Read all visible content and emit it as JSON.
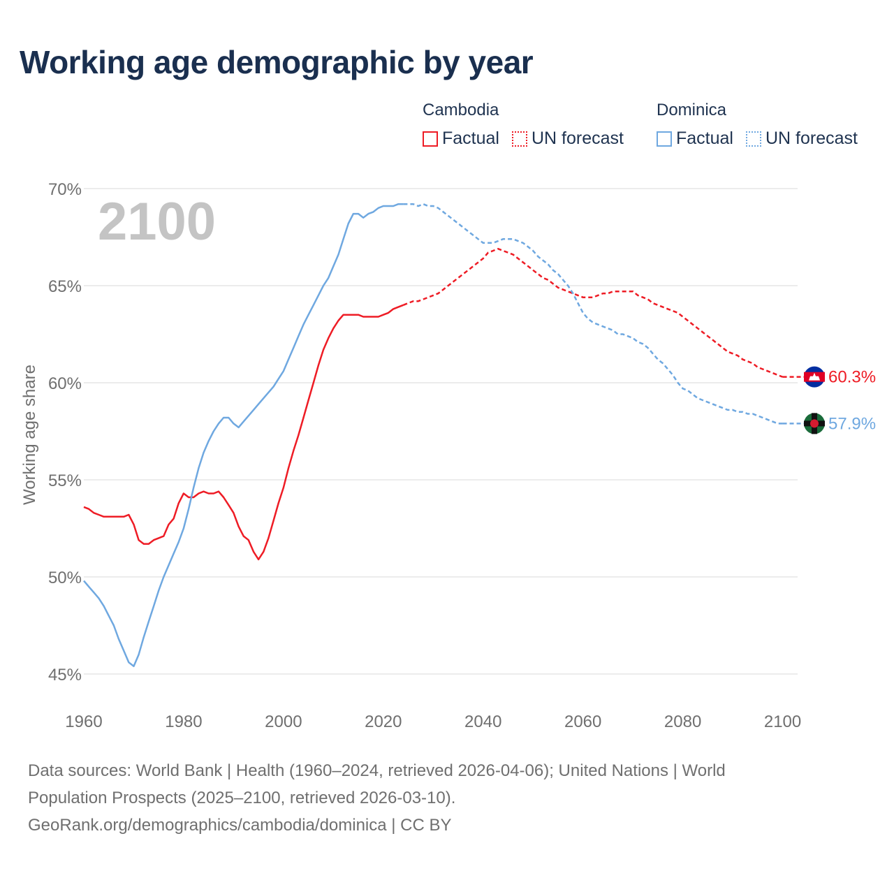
{
  "title": "Working age demographic by year",
  "colors": {
    "cambodia": "#ee1c25",
    "dominica": "#6fa8e0",
    "grid": "#e6e6e6",
    "tick": "#6f6f6f",
    "year_watermark": "#c4c4c4"
  },
  "legend": {
    "groups": [
      {
        "name": "Cambodia",
        "factual": "Factual",
        "forecast": "UN forecast",
        "color": "#ee1c25"
      },
      {
        "name": "Dominica",
        "factual": "Factual",
        "forecast": "UN forecast",
        "color": "#6fa8e0"
      }
    ]
  },
  "footer": {
    "sources_line1": "Data sources: World Bank | Health (1960–2024, retrieved 2026-04-06); United Nations | World",
    "sources_line2": "Population Prospects (2025–2100, retrieved 2026-03-10).",
    "credit": "GeoRank.org/demographics/cambodia/dominica | CC BY"
  },
  "chart_data": {
    "type": "line",
    "title": "Working age demographic by year",
    "xlabel": "",
    "ylabel": "Working age share",
    "year_watermark": "2100",
    "xlim": [
      1960,
      2103
    ],
    "ylim": [
      45,
      70
    ],
    "x_ticks": [
      1960,
      1980,
      2000,
      2020,
      2040,
      2060,
      2080,
      2100
    ],
    "x_tick_labels": [
      "1960",
      "1980",
      "2000",
      "2020",
      "2040",
      "2060",
      "2080",
      "2100"
    ],
    "y_ticks": [
      45,
      50,
      55,
      60,
      65,
      70
    ],
    "y_tick_labels": [
      "45%",
      "50%",
      "55%",
      "60%",
      "65%",
      "70%"
    ],
    "grid": true,
    "forecast_start": 2024,
    "series": [
      {
        "name": "Cambodia",
        "color": "#ee1c25",
        "end_label": "60.3%",
        "points": [
          [
            1960,
            53.6
          ],
          [
            1961,
            53.5
          ],
          [
            1962,
            53.3
          ],
          [
            1963,
            53.2
          ],
          [
            1964,
            53.1
          ],
          [
            1965,
            53.1
          ],
          [
            1966,
            53.1
          ],
          [
            1967,
            53.1
          ],
          [
            1968,
            53.1
          ],
          [
            1969,
            53.2
          ],
          [
            1970,
            52.7
          ],
          [
            1971,
            51.9
          ],
          [
            1972,
            51.7
          ],
          [
            1973,
            51.7
          ],
          [
            1974,
            51.9
          ],
          [
            1975,
            52.0
          ],
          [
            1976,
            52.1
          ],
          [
            1977,
            52.7
          ],
          [
            1978,
            53.0
          ],
          [
            1979,
            53.8
          ],
          [
            1980,
            54.3
          ],
          [
            1981,
            54.1
          ],
          [
            1982,
            54.1
          ],
          [
            1983,
            54.3
          ],
          [
            1984,
            54.4
          ],
          [
            1985,
            54.3
          ],
          [
            1986,
            54.3
          ],
          [
            1987,
            54.4
          ],
          [
            1988,
            54.1
          ],
          [
            1989,
            53.7
          ],
          [
            1990,
            53.3
          ],
          [
            1991,
            52.6
          ],
          [
            1992,
            52.1
          ],
          [
            1993,
            51.9
          ],
          [
            1994,
            51.3
          ],
          [
            1995,
            50.9
          ],
          [
            1996,
            51.3
          ],
          [
            1997,
            52.0
          ],
          [
            1998,
            52.9
          ],
          [
            1999,
            53.8
          ],
          [
            2000,
            54.6
          ],
          [
            2001,
            55.6
          ],
          [
            2002,
            56.5
          ],
          [
            2003,
            57.3
          ],
          [
            2004,
            58.2
          ],
          [
            2005,
            59.1
          ],
          [
            2006,
            60.0
          ],
          [
            2007,
            60.9
          ],
          [
            2008,
            61.7
          ],
          [
            2009,
            62.3
          ],
          [
            2010,
            62.8
          ],
          [
            2011,
            63.2
          ],
          [
            2012,
            63.5
          ],
          [
            2013,
            63.5
          ],
          [
            2014,
            63.5
          ],
          [
            2015,
            63.5
          ],
          [
            2016,
            63.4
          ],
          [
            2017,
            63.4
          ],
          [
            2018,
            63.4
          ],
          [
            2019,
            63.4
          ],
          [
            2020,
            63.5
          ],
          [
            2021,
            63.6
          ],
          [
            2022,
            63.8
          ],
          [
            2023,
            63.9
          ],
          [
            2024,
            64.0
          ],
          [
            2025,
            64.1
          ],
          [
            2026,
            64.2
          ],
          [
            2027,
            64.2
          ],
          [
            2028,
            64.3
          ],
          [
            2029,
            64.4
          ],
          [
            2030,
            64.5
          ],
          [
            2031,
            64.6
          ],
          [
            2032,
            64.8
          ],
          [
            2033,
            65.0
          ],
          [
            2034,
            65.2
          ],
          [
            2035,
            65.4
          ],
          [
            2036,
            65.6
          ],
          [
            2037,
            65.8
          ],
          [
            2038,
            66.0
          ],
          [
            2039,
            66.2
          ],
          [
            2040,
            66.4
          ],
          [
            2041,
            66.7
          ],
          [
            2042,
            66.8
          ],
          [
            2043,
            66.9
          ],
          [
            2044,
            66.8
          ],
          [
            2045,
            66.7
          ],
          [
            2046,
            66.6
          ],
          [
            2047,
            66.4
          ],
          [
            2048,
            66.2
          ],
          [
            2049,
            66.0
          ],
          [
            2050,
            65.8
          ],
          [
            2051,
            65.6
          ],
          [
            2052,
            65.4
          ],
          [
            2053,
            65.3
          ],
          [
            2054,
            65.1
          ],
          [
            2055,
            64.9
          ],
          [
            2056,
            64.8
          ],
          [
            2057,
            64.7
          ],
          [
            2058,
            64.6
          ],
          [
            2059,
            64.5
          ],
          [
            2060,
            64.4
          ],
          [
            2061,
            64.4
          ],
          [
            2062,
            64.4
          ],
          [
            2063,
            64.5
          ],
          [
            2064,
            64.6
          ],
          [
            2065,
            64.6
          ],
          [
            2066,
            64.7
          ],
          [
            2067,
            64.7
          ],
          [
            2068,
            64.7
          ],
          [
            2069,
            64.7
          ],
          [
            2070,
            64.7
          ],
          [
            2071,
            64.5
          ],
          [
            2072,
            64.4
          ],
          [
            2073,
            64.3
          ],
          [
            2074,
            64.1
          ],
          [
            2075,
            64.0
          ],
          [
            2076,
            63.9
          ],
          [
            2077,
            63.8
          ],
          [
            2078,
            63.7
          ],
          [
            2079,
            63.6
          ],
          [
            2080,
            63.4
          ],
          [
            2081,
            63.2
          ],
          [
            2082,
            63.0
          ],
          [
            2083,
            62.8
          ],
          [
            2084,
            62.6
          ],
          [
            2085,
            62.4
          ],
          [
            2086,
            62.2
          ],
          [
            2087,
            62.0
          ],
          [
            2088,
            61.8
          ],
          [
            2089,
            61.6
          ],
          [
            2090,
            61.5
          ],
          [
            2091,
            61.4
          ],
          [
            2092,
            61.2
          ],
          [
            2093,
            61.1
          ],
          [
            2094,
            61.0
          ],
          [
            2095,
            60.8
          ],
          [
            2096,
            60.7
          ],
          [
            2097,
            60.6
          ],
          [
            2098,
            60.5
          ],
          [
            2099,
            60.4
          ],
          [
            2100,
            60.3
          ]
        ]
      },
      {
        "name": "Dominica",
        "color": "#6fa8e0",
        "end_label": "57.9%",
        "points": [
          [
            1960,
            49.8
          ],
          [
            1961,
            49.5
          ],
          [
            1962,
            49.2
          ],
          [
            1963,
            48.9
          ],
          [
            1964,
            48.5
          ],
          [
            1965,
            48.0
          ],
          [
            1966,
            47.5
          ],
          [
            1967,
            46.8
          ],
          [
            1968,
            46.2
          ],
          [
            1969,
            45.6
          ],
          [
            1970,
            45.4
          ],
          [
            1971,
            46.0
          ],
          [
            1972,
            46.9
          ],
          [
            1973,
            47.7
          ],
          [
            1974,
            48.5
          ],
          [
            1975,
            49.3
          ],
          [
            1976,
            50.0
          ],
          [
            1977,
            50.6
          ],
          [
            1978,
            51.2
          ],
          [
            1979,
            51.8
          ],
          [
            1980,
            52.5
          ],
          [
            1981,
            53.5
          ],
          [
            1982,
            54.6
          ],
          [
            1983,
            55.6
          ],
          [
            1984,
            56.4
          ],
          [
            1985,
            57.0
          ],
          [
            1986,
            57.5
          ],
          [
            1987,
            57.9
          ],
          [
            1988,
            58.2
          ],
          [
            1989,
            58.2
          ],
          [
            1990,
            57.9
          ],
          [
            1991,
            57.7
          ],
          [
            1992,
            58.0
          ],
          [
            1993,
            58.3
          ],
          [
            1994,
            58.6
          ],
          [
            1995,
            58.9
          ],
          [
            1996,
            59.2
          ],
          [
            1997,
            59.5
          ],
          [
            1998,
            59.8
          ],
          [
            1999,
            60.2
          ],
          [
            2000,
            60.6
          ],
          [
            2001,
            61.2
          ],
          [
            2002,
            61.8
          ],
          [
            2003,
            62.4
          ],
          [
            2004,
            63.0
          ],
          [
            2005,
            63.5
          ],
          [
            2006,
            64.0
          ],
          [
            2007,
            64.5
          ],
          [
            2008,
            65.0
          ],
          [
            2009,
            65.4
          ],
          [
            2010,
            66.0
          ],
          [
            2011,
            66.6
          ],
          [
            2012,
            67.4
          ],
          [
            2013,
            68.2
          ],
          [
            2014,
            68.7
          ],
          [
            2015,
            68.7
          ],
          [
            2016,
            68.5
          ],
          [
            2017,
            68.7
          ],
          [
            2018,
            68.8
          ],
          [
            2019,
            69.0
          ],
          [
            2020,
            69.1
          ],
          [
            2021,
            69.1
          ],
          [
            2022,
            69.1
          ],
          [
            2023,
            69.2
          ],
          [
            2024,
            69.2
          ],
          [
            2025,
            69.2
          ],
          [
            2026,
            69.2
          ],
          [
            2027,
            69.1
          ],
          [
            2028,
            69.2
          ],
          [
            2029,
            69.1
          ],
          [
            2030,
            69.1
          ],
          [
            2031,
            69.0
          ],
          [
            2032,
            68.8
          ],
          [
            2033,
            68.6
          ],
          [
            2034,
            68.4
          ],
          [
            2035,
            68.2
          ],
          [
            2036,
            68.0
          ],
          [
            2037,
            67.8
          ],
          [
            2038,
            67.6
          ],
          [
            2039,
            67.4
          ],
          [
            2040,
            67.2
          ],
          [
            2041,
            67.2
          ],
          [
            2042,
            67.2
          ],
          [
            2043,
            67.3
          ],
          [
            2044,
            67.4
          ],
          [
            2045,
            67.4
          ],
          [
            2046,
            67.4
          ],
          [
            2047,
            67.3
          ],
          [
            2048,
            67.2
          ],
          [
            2049,
            67.0
          ],
          [
            2050,
            66.8
          ],
          [
            2051,
            66.5
          ],
          [
            2052,
            66.3
          ],
          [
            2053,
            66.1
          ],
          [
            2054,
            65.8
          ],
          [
            2055,
            65.6
          ],
          [
            2056,
            65.3
          ],
          [
            2057,
            65.0
          ],
          [
            2058,
            64.6
          ],
          [
            2059,
            64.1
          ],
          [
            2060,
            63.6
          ],
          [
            2061,
            63.3
          ],
          [
            2062,
            63.1
          ],
          [
            2063,
            63.0
          ],
          [
            2064,
            62.9
          ],
          [
            2065,
            62.8
          ],
          [
            2066,
            62.7
          ],
          [
            2067,
            62.5
          ],
          [
            2068,
            62.5
          ],
          [
            2069,
            62.4
          ],
          [
            2070,
            62.3
          ],
          [
            2071,
            62.1
          ],
          [
            2072,
            62.0
          ],
          [
            2073,
            61.8
          ],
          [
            2074,
            61.5
          ],
          [
            2075,
            61.2
          ],
          [
            2076,
            61.0
          ],
          [
            2077,
            60.7
          ],
          [
            2078,
            60.4
          ],
          [
            2079,
            60.0
          ],
          [
            2080,
            59.7
          ],
          [
            2081,
            59.6
          ],
          [
            2082,
            59.4
          ],
          [
            2083,
            59.2
          ],
          [
            2084,
            59.1
          ],
          [
            2085,
            59.0
          ],
          [
            2086,
            58.9
          ],
          [
            2087,
            58.8
          ],
          [
            2088,
            58.7
          ],
          [
            2089,
            58.6
          ],
          [
            2090,
            58.6
          ],
          [
            2091,
            58.5
          ],
          [
            2092,
            58.5
          ],
          [
            2093,
            58.4
          ],
          [
            2094,
            58.4
          ],
          [
            2095,
            58.3
          ],
          [
            2096,
            58.2
          ],
          [
            2097,
            58.1
          ],
          [
            2098,
            58.0
          ],
          [
            2099,
            57.9
          ],
          [
            2100,
            57.9
          ]
        ]
      }
    ]
  }
}
